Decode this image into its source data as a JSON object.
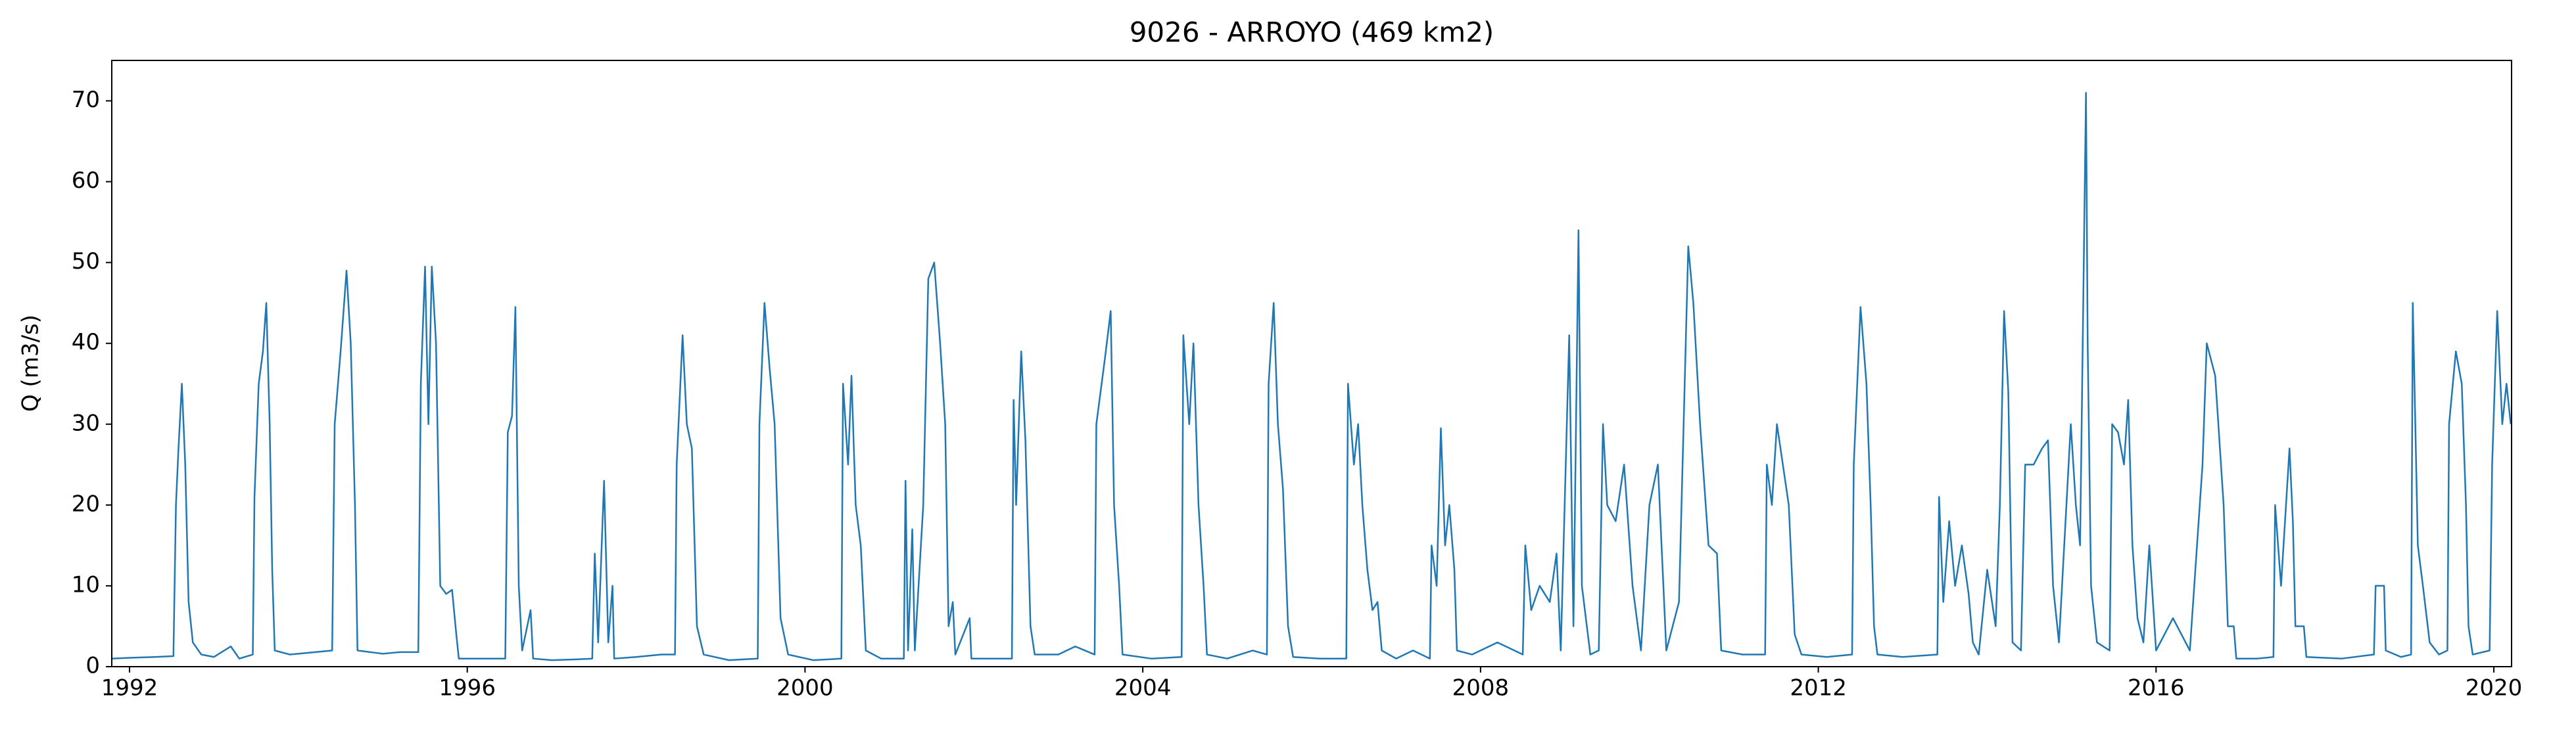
{
  "chart_data": {
    "type": "line",
    "title": "9026 - ARROYO (469 km2)",
    "y_label": "Q (m3/s)",
    "x": [
      1991.79,
      1992.0,
      1992.3,
      1992.52,
      1992.55,
      1992.58,
      1992.62,
      1992.66,
      1992.7,
      1992.75,
      1992.85,
      1993.0,
      1993.2,
      1993.3,
      1993.46,
      1993.48,
      1993.53,
      1993.58,
      1993.62,
      1993.66,
      1993.69,
      1993.72,
      1993.9,
      1994.2,
      1994.4,
      1994.43,
      1994.5,
      1994.57,
      1994.62,
      1994.67,
      1994.7,
      1995.0,
      1995.2,
      1995.42,
      1995.45,
      1995.5,
      1995.54,
      1995.58,
      1995.63,
      1995.68,
      1995.75,
      1995.82,
      1995.87,
      1995.9,
      1996.2,
      1996.45,
      1996.48,
      1996.53,
      1996.57,
      1996.61,
      1996.65,
      1996.75,
      1996.78,
      1997.0,
      1997.3,
      1997.48,
      1997.51,
      1997.55,
      1997.62,
      1997.67,
      1997.72,
      1997.74,
      1998.0,
      1998.3,
      1998.46,
      1998.48,
      1998.55,
      1998.6,
      1998.66,
      1998.72,
      1998.8,
      1999.1,
      1999.44,
      1999.46,
      1999.52,
      1999.58,
      1999.64,
      1999.71,
      1999.8,
      2000.1,
      2000.43,
      2000.45,
      2000.51,
      2000.55,
      2000.6,
      2000.66,
      2000.72,
      2000.9,
      2001.17,
      2001.19,
      2001.22,
      2001.27,
      2001.3,
      2001.4,
      2001.46,
      2001.53,
      2001.6,
      2001.66,
      2001.7,
      2001.75,
      2001.78,
      2001.95,
      2001.97,
      2002.2,
      2002.45,
      2002.47,
      2002.5,
      2002.56,
      2002.61,
      2002.67,
      2002.72,
      2003.0,
      2003.2,
      2003.43,
      2003.45,
      2003.55,
      2003.62,
      2003.66,
      2003.72,
      2003.76,
      2004.1,
      2004.46,
      2004.48,
      2004.55,
      2004.6,
      2004.66,
      2004.72,
      2004.76,
      2005.0,
      2005.3,
      2005.47,
      2005.49,
      2005.55,
      2005.6,
      2005.66,
      2005.72,
      2005.78,
      2006.1,
      2006.41,
      2006.43,
      2006.5,
      2006.55,
      2006.6,
      2006.66,
      2006.72,
      2006.78,
      2006.83,
      2007.0,
      2007.2,
      2007.4,
      2007.42,
      2007.48,
      2007.53,
      2007.58,
      2007.63,
      2007.69,
      2007.72,
      2007.9,
      2008.2,
      2008.5,
      2008.53,
      2008.6,
      2008.7,
      2008.82,
      2008.9,
      2008.95,
      2009.05,
      2009.1,
      2009.16,
      2009.2,
      2009.3,
      2009.4,
      2009.45,
      2009.5,
      2009.6,
      2009.7,
      2009.8,
      2009.9,
      2010.0,
      2010.1,
      2010.2,
      2010.35,
      2010.46,
      2010.52,
      2010.6,
      2010.7,
      2010.8,
      2010.85,
      2011.1,
      2011.37,
      2011.39,
      2011.45,
      2011.51,
      2011.58,
      2011.65,
      2011.72,
      2011.8,
      2012.1,
      2012.4,
      2012.42,
      2012.5,
      2012.57,
      2012.62,
      2012.66,
      2012.7,
      2013.0,
      2013.41,
      2013.43,
      2013.48,
      2013.55,
      2013.62,
      2013.7,
      2013.78,
      2013.83,
      2013.9,
      2014.0,
      2014.1,
      2014.15,
      2014.2,
      2014.25,
      2014.3,
      2014.4,
      2014.45,
      2014.55,
      2014.65,
      2014.72,
      2014.78,
      2014.85,
      2014.99,
      2015.05,
      2015.1,
      2015.17,
      2015.19,
      2015.23,
      2015.3,
      2015.45,
      2015.48,
      2015.55,
      2015.62,
      2015.67,
      2015.72,
      2015.78,
      2015.85,
      2015.92,
      2016.0,
      2016.2,
      2016.4,
      2016.55,
      2016.6,
      2016.7,
      2016.8,
      2016.85,
      2016.92,
      2016.95,
      2017.2,
      2017.39,
      2017.41,
      2017.48,
      2017.58,
      2017.62,
      2017.65,
      2017.75,
      2017.78,
      2018.2,
      2018.58,
      2018.6,
      2018.7,
      2018.72,
      2018.9,
      2019.02,
      2019.04,
      2019.1,
      2019.16,
      2019.24,
      2019.35,
      2019.45,
      2019.47,
      2019.55,
      2019.62,
      2019.67,
      2019.7,
      2019.75,
      2019.95,
      2019.98,
      2020.04,
      2020.1,
      2020.15,
      2020.2
    ],
    "series": [
      {
        "color": "#1f77b4",
        "values": [
          1.0,
          1.1,
          1.2,
          1.3,
          20,
          27,
          35,
          25,
          8,
          3,
          1.5,
          1.2,
          2.5,
          1.0,
          1.5,
          21,
          35,
          39,
          45,
          30,
          12,
          2,
          1.5,
          1.8,
          2.0,
          30,
          39,
          49,
          40,
          20,
          2,
          1.6,
          1.8,
          1.8,
          35,
          49.5,
          30,
          49.5,
          40,
          10,
          9,
          9.5,
          4,
          1,
          1.0,
          1.0,
          29,
          31,
          44.5,
          10,
          2,
          7,
          1,
          0.8,
          0.9,
          1,
          14,
          3,
          23,
          3,
          10,
          1,
          1.2,
          1.5,
          1.5,
          25,
          41,
          30,
          27,
          5,
          1.5,
          0.8,
          1,
          30,
          45,
          37,
          30,
          6,
          1.5,
          0.8,
          1,
          35,
          25,
          36,
          20,
          15,
          2,
          1,
          1,
          23,
          2,
          17,
          2,
          20,
          48,
          50,
          40,
          30,
          5,
          8,
          1.5,
          6,
          1,
          1,
          1,
          33,
          20,
          39,
          28,
          5,
          1.5,
          1.5,
          2.5,
          1.5,
          30,
          38,
          44,
          20,
          10,
          1.5,
          1.0,
          1.2,
          41,
          30,
          40,
          20,
          10,
          1.5,
          1.0,
          2,
          1.5,
          35,
          45,
          30,
          22,
          5,
          1.2,
          1.0,
          1.0,
          35,
          25,
          30,
          20,
          12,
          7,
          8,
          2,
          1,
          2,
          1,
          15,
          10,
          29.5,
          15,
          20,
          12,
          2,
          1.5,
          3,
          1.5,
          15,
          7,
          10,
          8,
          14,
          2,
          41,
          5,
          54,
          10,
          1.5,
          2,
          30,
          20,
          18,
          25,
          10,
          2,
          20,
          25,
          2,
          8,
          52,
          45,
          30,
          15,
          14,
          2,
          1.5,
          1.5,
          25,
          20,
          30,
          25,
          20,
          4,
          1.5,
          1.2,
          1.5,
          25,
          44.5,
          35,
          20,
          5,
          1.5,
          1.2,
          1.5,
          21,
          8,
          18,
          10,
          15,
          9,
          3,
          1.5,
          12,
          5,
          20,
          44,
          34,
          3,
          2,
          25,
          25,
          27,
          28,
          10,
          3,
          30,
          20,
          15,
          71,
          40,
          10,
          3,
          2,
          30,
          29,
          25,
          33,
          15,
          6,
          3,
          15,
          2,
          6,
          2,
          25,
          40,
          36,
          20,
          5,
          5,
          1,
          1,
          1.2,
          20,
          10,
          27,
          18,
          5,
          5,
          1.2,
          1.0,
          1.5,
          10,
          10,
          2,
          1.2,
          1.5,
          45,
          15,
          10,
          3,
          1.5,
          2,
          30,
          39,
          35,
          20,
          5,
          1.5,
          2,
          25,
          44,
          30,
          35,
          30
        ]
      }
    ],
    "xlim": [
      1991.79,
      2020.21
    ],
    "ylim": [
      0,
      75
    ],
    "xticks": [
      1992,
      1996,
      2000,
      2004,
      2008,
      2012,
      2016,
      2020
    ],
    "yticks": [
      0,
      10,
      20,
      30,
      40,
      50,
      60,
      70
    ]
  }
}
